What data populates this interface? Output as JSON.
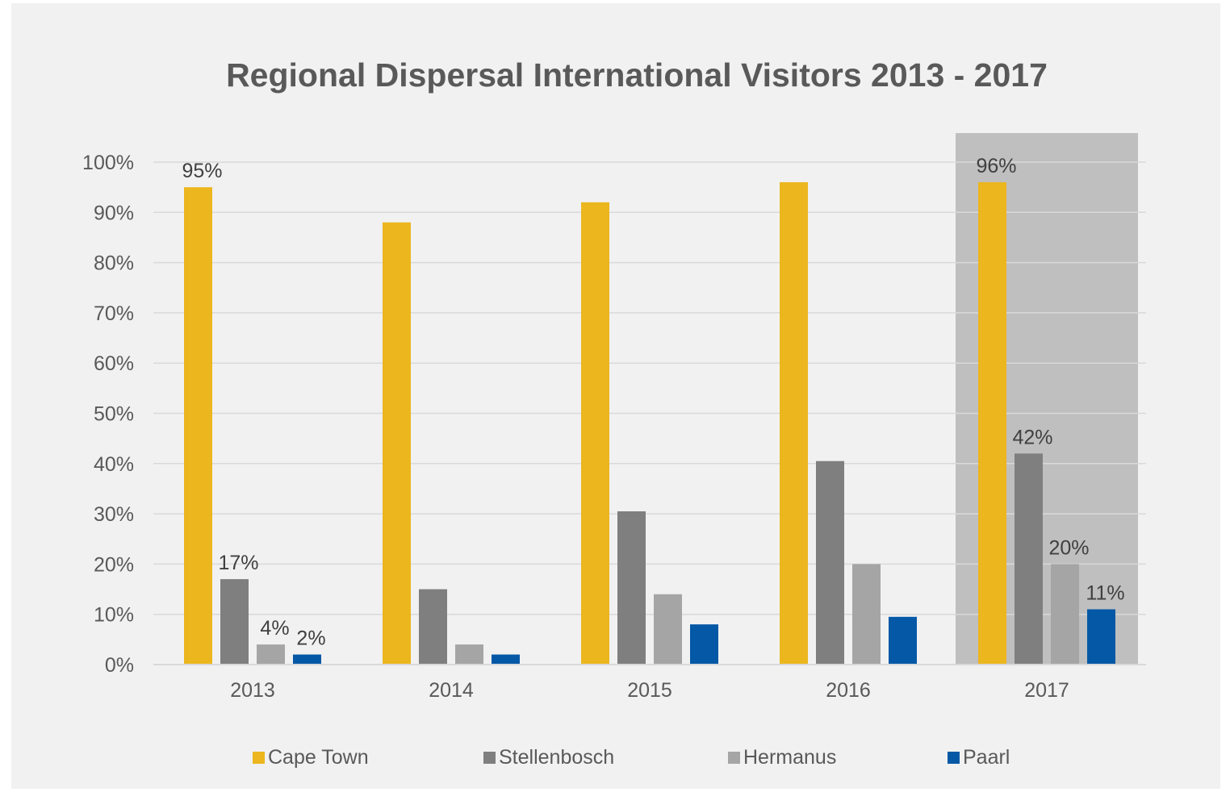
{
  "chart_data": {
    "type": "bar",
    "title": "Regional Dispersal International Visitors 2013 - 2017",
    "xlabel": "",
    "ylabel": "",
    "ylim": [
      0,
      100
    ],
    "yticks": [
      "0%",
      "10%",
      "20%",
      "30%",
      "40%",
      "50%",
      "60%",
      "70%",
      "80%",
      "90%",
      "100%"
    ],
    "categories": [
      "2013",
      "2014",
      "2015",
      "2016",
      "2017"
    ],
    "highlighted_category": "2017",
    "grid": true,
    "legend_position": "bottom",
    "series": [
      {
        "name": "Cape Town",
        "color": "#ebb61e",
        "values": [
          95,
          88,
          92,
          96,
          96
        ],
        "labels": [
          "95%",
          "",
          "",
          "",
          "96%"
        ]
      },
      {
        "name": "Stellenbosch",
        "color": "#7f7f7f",
        "values": [
          17,
          15,
          30.5,
          40.5,
          42
        ],
        "labels": [
          "17%",
          "",
          "",
          "",
          "42%"
        ]
      },
      {
        "name": "Hermanus",
        "color": "#a5a5a5",
        "values": [
          4,
          4,
          14,
          20,
          20
        ],
        "labels": [
          "4%",
          "",
          "",
          "",
          "20%"
        ]
      },
      {
        "name": "Paarl",
        "color": "#0458a6",
        "values": [
          2,
          2,
          8,
          9.5,
          11
        ],
        "labels": [
          "2%",
          "",
          "",
          "",
          "11%"
        ]
      }
    ]
  }
}
